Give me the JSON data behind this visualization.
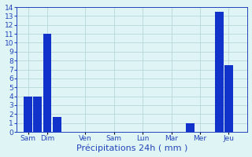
{
  "tick_labels": [
    "Sam",
    "Dim",
    "Ven",
    "Sam",
    "Lun",
    "Mar",
    "Mer",
    "Jeu"
  ],
  "tick_positions": [
    1,
    3,
    7,
    10,
    13,
    16,
    19,
    22
  ],
  "bar_positions": [
    1,
    2,
    3,
    4,
    18,
    21,
    22
  ],
  "bar_heights": [
    4.0,
    4.0,
    11.0,
    1.7,
    1.0,
    13.5,
    7.5
  ],
  "bar_color": "#1133cc",
  "background_color": "#dff5f5",
  "grid_color": "#b8d8d8",
  "xlabel": "Précipitations 24h ( mm )",
  "ylim": [
    0,
    14
  ],
  "xlim": [
    -0.2,
    24
  ],
  "yticks": [
    0,
    1,
    2,
    3,
    4,
    5,
    6,
    7,
    8,
    9,
    10,
    11,
    12,
    13,
    14
  ],
  "bar_width": 0.9,
  "axis_color": "#2244bb",
  "xlabel_fontsize": 8,
  "tick_fontsize": 6.5
}
